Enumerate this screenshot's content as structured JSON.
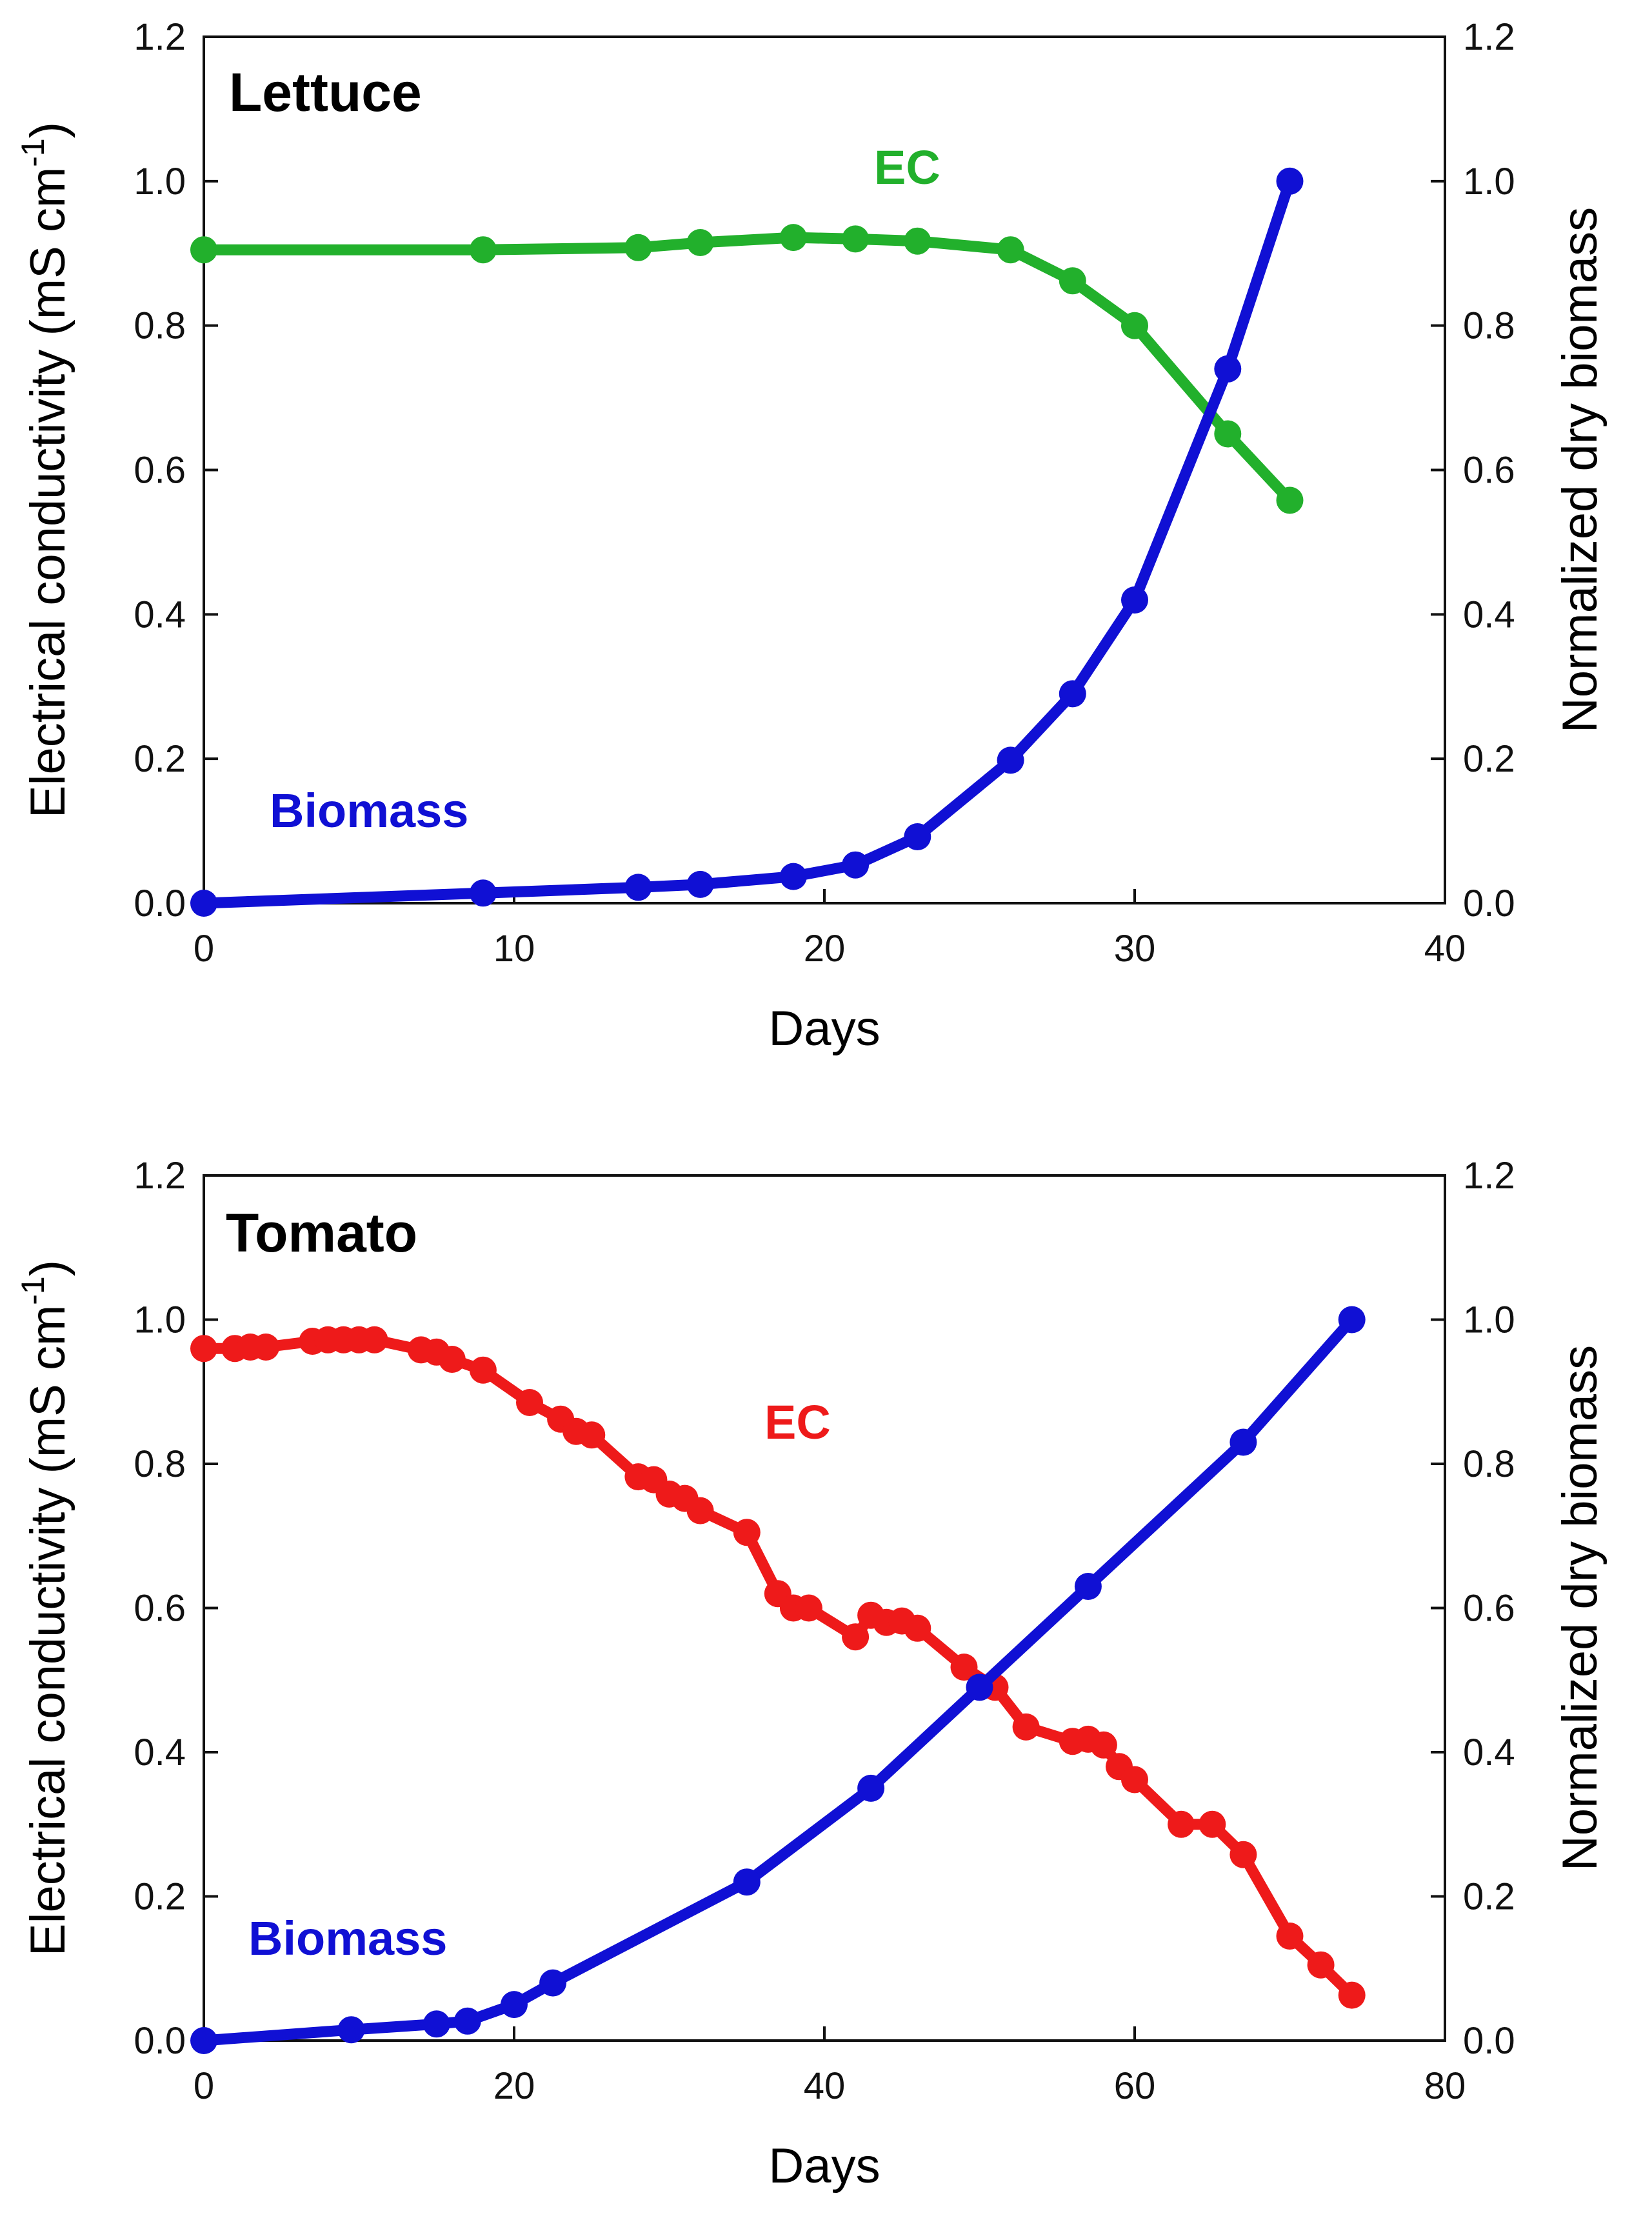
{
  "chart_data": [
    {
      "type": "line",
      "title": "Lettuce",
      "xlabel": "Days",
      "ylabel_left": "Electrical conductivity (mS cm",
      "ylabel_left_superscript": "-1",
      "ylabel_left_suffix": ")",
      "ylabel_right": "Normalized dry biomass",
      "xlim": [
        0,
        40
      ],
      "ylim": [
        0,
        1.2
      ],
      "xticks": [
        "0",
        "10",
        "20",
        "30",
        "40"
      ],
      "yticks": [
        "0.0",
        "0.2",
        "0.4",
        "0.6",
        "0.8",
        "1.0",
        "1.2"
      ],
      "grid": false,
      "series": [
        {
          "name": "EC",
          "axis": "left",
          "color": "#22b02c",
          "x": [
            0,
            9,
            14,
            16,
            19,
            21,
            23,
            26,
            28,
            30,
            33,
            35
          ],
          "values": [
            0.905,
            0.905,
            0.908,
            0.915,
            0.922,
            0.92,
            0.917,
            0.905,
            0.862,
            0.8,
            0.65,
            0.558
          ]
        },
        {
          "name": "Biomass",
          "axis": "right",
          "color": "#1010d4",
          "x": [
            0,
            9,
            14,
            16,
            19,
            21,
            23,
            26,
            28,
            30,
            33,
            35
          ],
          "values": [
            0.0,
            0.014,
            0.022,
            0.026,
            0.037,
            0.053,
            0.092,
            0.198,
            0.29,
            0.42,
            0.74,
            1.0
          ]
        }
      ]
    },
    {
      "type": "line",
      "title": "Tomato",
      "xlabel": "Days",
      "ylabel_left": "Electrical conductivity (mS cm",
      "ylabel_left_superscript": "-1",
      "ylabel_left_suffix": ")",
      "ylabel_right": "Normalized dry biomass",
      "xlim": [
        0,
        80
      ],
      "ylim": [
        0,
        1.2
      ],
      "xticks": [
        "0",
        "20",
        "40",
        "60",
        "80"
      ],
      "yticks": [
        "0.0",
        "0.2",
        "0.4",
        "0.6",
        "0.8",
        "1.0",
        "1.2"
      ],
      "grid": false,
      "series": [
        {
          "name": "EC",
          "axis": "left",
          "color": "#ee1a1a",
          "x": [
            0,
            2,
            3,
            4,
            7,
            8,
            9,
            10,
            11,
            14,
            15,
            16,
            18,
            21,
            23,
            24,
            25,
            28,
            29,
            30,
            31,
            32,
            35,
            37,
            38,
            39,
            42,
            43,
            44,
            45,
            46,
            49,
            51,
            53,
            56,
            57,
            58,
            59,
            60,
            63,
            65,
            67,
            70,
            72,
            74
          ],
          "values": [
            0.96,
            0.96,
            0.962,
            0.962,
            0.97,
            0.972,
            0.972,
            0.972,
            0.972,
            0.958,
            0.955,
            0.945,
            0.93,
            0.885,
            0.862,
            0.845,
            0.84,
            0.782,
            0.778,
            0.758,
            0.752,
            0.735,
            0.705,
            0.62,
            0.6,
            0.6,
            0.56,
            0.59,
            0.58,
            0.582,
            0.572,
            0.518,
            0.49,
            0.435,
            0.415,
            0.418,
            0.41,
            0.38,
            0.362,
            0.3,
            0.3,
            0.258,
            0.145,
            0.105,
            0.063
          ]
        },
        {
          "name": "Biomass",
          "axis": "right",
          "color": "#1010d4",
          "x": [
            0,
            9.5,
            15,
            17,
            20,
            22.5,
            35,
            43,
            50,
            57,
            67,
            74
          ],
          "values": [
            0.0,
            0.015,
            0.023,
            0.027,
            0.05,
            0.08,
            0.22,
            0.35,
            0.49,
            0.63,
            0.83,
            1.0
          ]
        }
      ]
    }
  ]
}
